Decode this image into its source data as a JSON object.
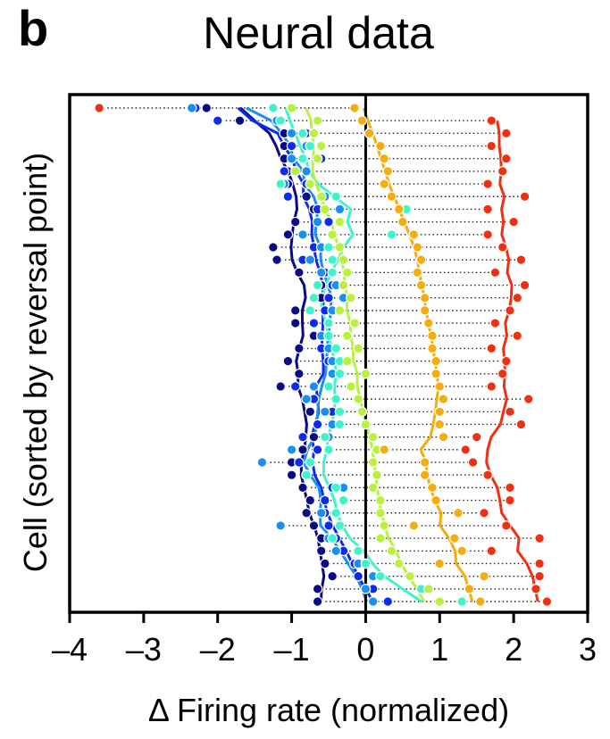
{
  "panel_label": "b",
  "chart_data": {
    "type": "scatter",
    "title": "Neural data",
    "xlabel": "Δ Firing rate (normalized)",
    "ylabel": "Cell (sorted by reversal point)",
    "xlim": [
      -4,
      3
    ],
    "xticks": [
      -4,
      -3,
      -2,
      -1,
      0,
      1,
      2,
      3
    ],
    "xtick_labels": [
      "–4",
      "–3",
      "–2",
      "–1",
      "0",
      "1",
      "2",
      "3"
    ],
    "grid": false,
    "legend": "none",
    "n_cells": 40,
    "reference_line_x": 0,
    "series_colors": [
      "#0a0a85",
      "#0b2cf0",
      "#1a8ff2",
      "#3ef5c9",
      "#b8f23f",
      "#f5ad0d",
      "#f03010"
    ],
    "series": [
      {
        "color": "#0a0a85",
        "values": [
          -2.15,
          -1.7,
          -1.1,
          -1.1,
          -1.1,
          -1.05,
          -1.05,
          -0.8,
          -0.7,
          -0.95,
          -1.05,
          -1.25,
          -1.2,
          -0.9,
          -0.6,
          -0.6,
          -0.95,
          -0.95,
          -0.7,
          -0.9,
          -1.05,
          -0.9,
          -1.15,
          -0.8,
          -0.75,
          -0.65,
          -0.7,
          -0.85,
          -1.0,
          -1.0,
          -0.85,
          -0.75,
          -0.8,
          -0.7,
          -0.6,
          -0.6,
          -0.55,
          -0.45,
          -0.65,
          -0.65
        ]
      },
      {
        "color": "#0b2cf0",
        "values": [
          -2.3,
          -2.0,
          -0.8,
          -1.0,
          -0.6,
          -1.1,
          -0.8,
          -1.05,
          -0.65,
          -0.5,
          -0.85,
          -0.7,
          -0.85,
          -0.55,
          -0.45,
          -0.5,
          -0.55,
          -0.7,
          -0.6,
          -0.6,
          -0.5,
          -0.35,
          -0.95,
          -0.7,
          -0.45,
          -0.65,
          -0.85,
          -0.65,
          -0.9,
          -0.8,
          -0.45,
          -0.55,
          -0.55,
          -0.5,
          -0.4,
          -0.3,
          -0.15,
          -0.1,
          0.1,
          0.3
        ]
      },
      {
        "color": "#1a8ff2",
        "values": [
          -2.35,
          -1.2,
          -1.0,
          -0.8,
          -1.0,
          -0.8,
          -1.1,
          -0.55,
          -0.35,
          -0.65,
          -0.85,
          -0.6,
          -0.75,
          -0.6,
          -0.4,
          -0.3,
          -0.45,
          -0.5,
          -0.6,
          -0.5,
          -0.45,
          -0.45,
          -0.7,
          -0.8,
          -0.55,
          -0.45,
          -0.5,
          -1.0,
          -1.4,
          -0.8,
          -0.3,
          -0.3,
          -0.6,
          -1.15,
          -0.5,
          -0.4,
          -0.1,
          0.1,
          0.0,
          0.1
        ]
      },
      {
        "color": "#3ef5c9",
        "values": [
          -1.25,
          -1.15,
          -0.85,
          -0.75,
          -0.85,
          -0.95,
          -1.15,
          -0.4,
          0.55,
          -0.35,
          0.35,
          -0.5,
          -0.45,
          -0.45,
          -0.65,
          -0.7,
          -0.75,
          -0.5,
          -0.5,
          -0.4,
          -0.35,
          -0.35,
          -0.5,
          -0.4,
          -0.35,
          -0.35,
          -0.55,
          -0.5,
          -0.75,
          -0.8,
          -0.4,
          -0.3,
          -0.4,
          -0.35,
          -0.45,
          -0.1,
          0.0,
          0.2,
          0.75,
          1.3
        ]
      },
      {
        "color": "#b8f23f",
        "values": [
          -1.0,
          -0.65,
          -0.7,
          -0.6,
          -0.65,
          -0.95,
          -0.75,
          -0.6,
          -0.55,
          -0.35,
          -0.45,
          -0.35,
          -0.3,
          -0.25,
          -0.3,
          -0.2,
          -0.35,
          -0.15,
          -0.25,
          -0.1,
          -0.25,
          0.0,
          -0.2,
          -0.1,
          -0.05,
          0.0,
          0.1,
          0.15,
          0.1,
          0.15,
          0.1,
          0.2,
          0.2,
          0.25,
          0.2,
          0.35,
          0.45,
          0.6,
          0.85,
          1.0
        ]
      },
      {
        "color": "#f5ad0d",
        "values": [
          -0.15,
          -0.05,
          0.05,
          0.2,
          0.25,
          0.3,
          0.25,
          0.35,
          0.45,
          0.5,
          0.65,
          0.7,
          0.75,
          0.7,
          0.75,
          0.8,
          0.8,
          0.85,
          0.9,
          0.9,
          0.95,
          0.95,
          1.0,
          1.05,
          1.0,
          1.0,
          1.05,
          0.25,
          0.8,
          0.8,
          0.9,
          0.95,
          1.25,
          0.65,
          1.2,
          1.3,
          1.0,
          1.6,
          1.4,
          1.55
        ]
      },
      {
        "color": "#f03010",
        "values": [
          -3.6,
          1.7,
          1.9,
          1.7,
          1.9,
          1.85,
          1.65,
          2.15,
          1.65,
          2.0,
          1.65,
          1.85,
          2.1,
          1.75,
          2.15,
          2.05,
          1.95,
          1.75,
          2.05,
          1.7,
          1.9,
          1.85,
          1.7,
          2.2,
          1.95,
          2.1,
          1.5,
          1.35,
          1.45,
          1.65,
          1.95,
          1.95,
          1.6,
          1.9,
          2.35,
          1.7,
          2.35,
          2.35,
          2.3,
          2.45
        ]
      }
    ]
  }
}
